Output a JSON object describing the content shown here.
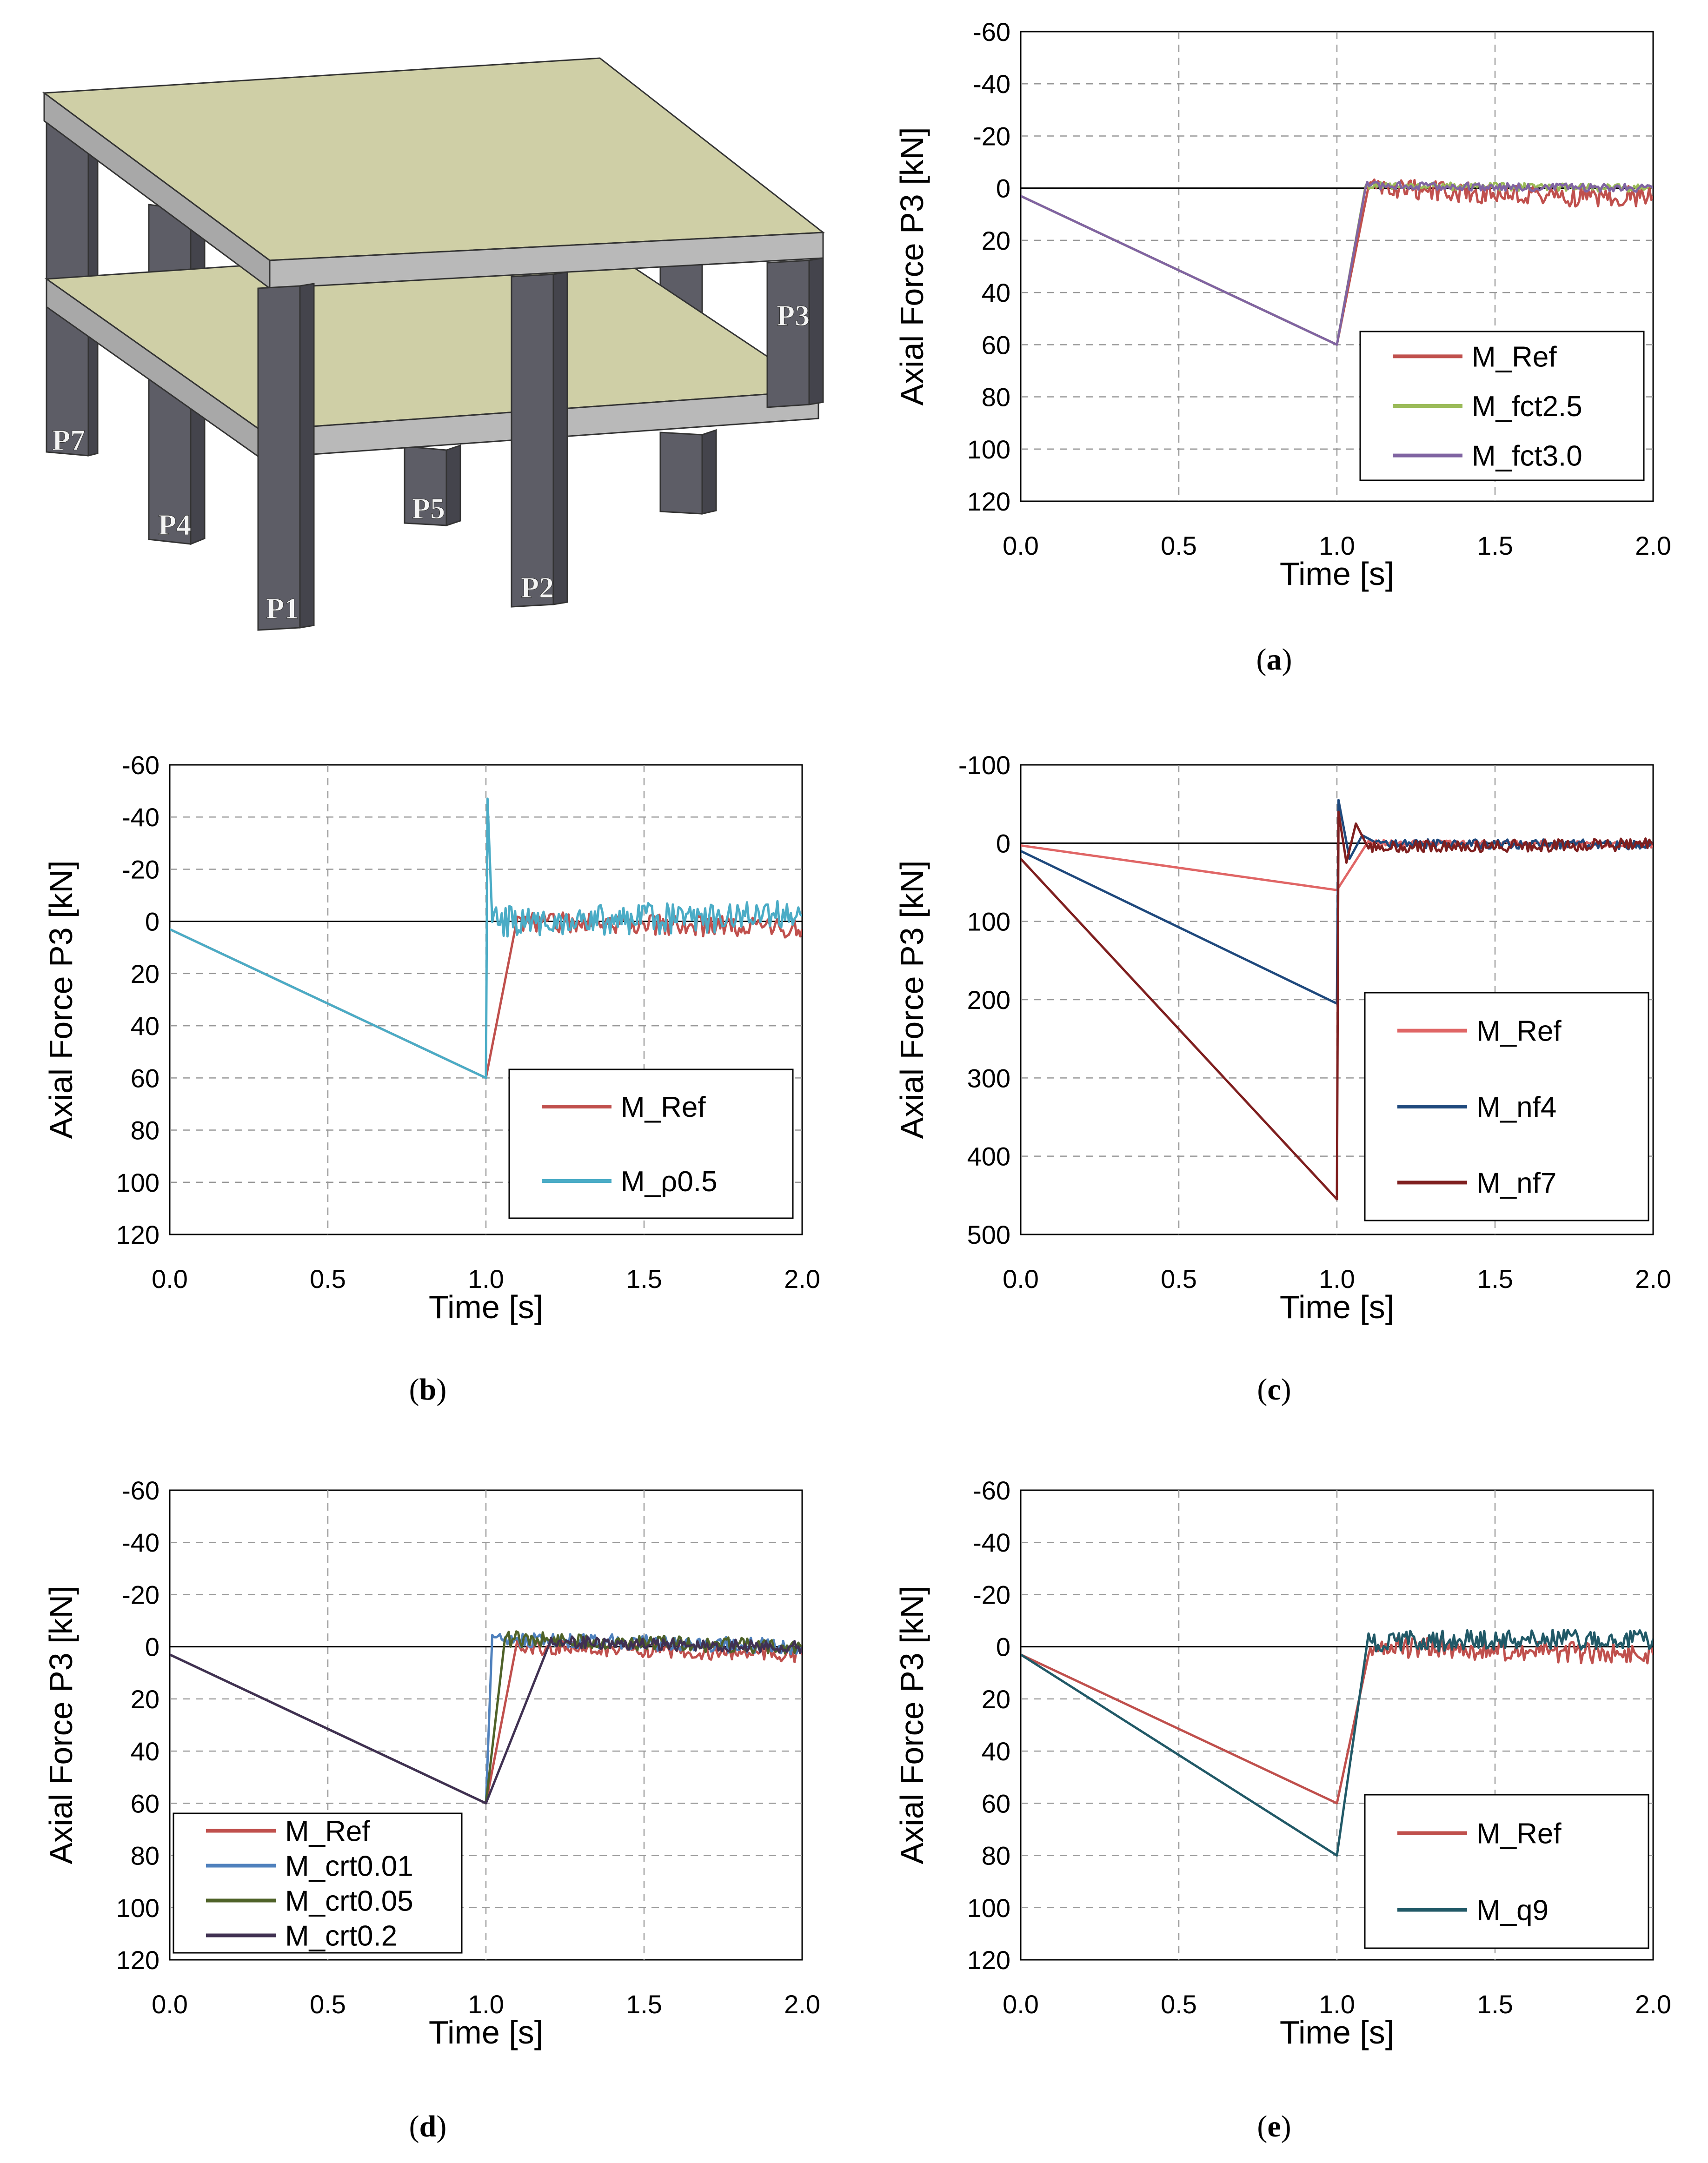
{
  "model": {
    "labels": [
      "P1",
      "P2",
      "P3",
      "P4",
      "P5",
      "P7"
    ],
    "colors": {
      "slab_top": "#cfcfa6",
      "slab_edge": "#b9b9b9",
      "column": "#5d5d66"
    }
  },
  "chart_data": [
    {
      "id": "a",
      "caption": "a",
      "type": "line",
      "xlabel": "Time [s]",
      "ylabel": "Axial Force P3 [kN]",
      "xlim": [
        0,
        2
      ],
      "ylim": [
        -60,
        120
      ],
      "y_inverted": true,
      "xticks": [
        "0.0",
        "0.5",
        "1.0",
        "1.5",
        "2.0"
      ],
      "yticks": [
        "-60",
        "-40",
        "-20",
        "0",
        "20",
        "40",
        "60",
        "80",
        "100",
        "120"
      ],
      "grid": true,
      "legend_position": "bottom-right",
      "series": [
        {
          "name": "M_Ref",
          "color": "#c0504d",
          "points": [
            [
              0,
              3
            ],
            [
              1.0,
              60
            ],
            [
              1.1,
              0
            ],
            [
              1.3,
              1
            ],
            [
              1.5,
              2
            ],
            [
              1.7,
              3
            ],
            [
              2.0,
              3
            ]
          ],
          "noise_after": 1.1,
          "noise_amp": 4
        },
        {
          "name": "M_fct2.5",
          "color": "#9bbb59",
          "points": [
            [
              0,
              3
            ],
            [
              1.0,
              60
            ],
            [
              1.09,
              -1
            ],
            [
              2.0,
              0
            ]
          ],
          "noise_after": 1.09,
          "noise_amp": 1.5
        },
        {
          "name": "M_fct3.0",
          "color": "#8064a2",
          "points": [
            [
              0,
              3
            ],
            [
              1.0,
              60
            ],
            [
              1.09,
              -1
            ],
            [
              2.0,
              0
            ]
          ],
          "noise_after": 1.09,
          "noise_amp": 1.5
        }
      ]
    },
    {
      "id": "b",
      "caption": "b",
      "type": "line",
      "xlabel": "Time [s]",
      "ylabel": "Axial Force P3 [kN]",
      "xlim": [
        0,
        2
      ],
      "ylim": [
        -60,
        120
      ],
      "y_inverted": true,
      "xticks": [
        "0.0",
        "0.5",
        "1.0",
        "1.5",
        "2.0"
      ],
      "yticks": [
        "-60",
        "-40",
        "-20",
        "0",
        "20",
        "40",
        "60",
        "80",
        "100",
        "120"
      ],
      "grid": true,
      "legend_position": "bottom-right",
      "series": [
        {
          "name": "M_Ref",
          "color": "#c0504d",
          "points": [
            [
              0,
              3
            ],
            [
              1.0,
              60
            ],
            [
              1.1,
              0
            ],
            [
              1.5,
              1
            ],
            [
              2.0,
              3
            ]
          ],
          "noise_after": 1.1,
          "noise_amp": 4
        },
        {
          "name": "M_ρ0.5",
          "color": "#4bacc6",
          "points": [
            [
              0,
              3
            ],
            [
              1.0,
              60
            ],
            [
              1.005,
              -47
            ],
            [
              1.02,
              0
            ],
            [
              2.0,
              -2
            ]
          ],
          "noise_after": 1.02,
          "noise_amp": 6
        }
      ]
    },
    {
      "id": "c",
      "caption": "c",
      "type": "line",
      "xlabel": "Time [s]",
      "ylabel": "Axial Force P3 [kN]",
      "xlim": [
        0,
        2
      ],
      "ylim": [
        -100,
        500
      ],
      "y_inverted": true,
      "xticks": [
        "0.0",
        "0.5",
        "1.0",
        "1.5",
        "2.0"
      ],
      "yticks": [
        "-100",
        "0",
        "100",
        "200",
        "300",
        "400",
        "500"
      ],
      "grid": true,
      "legend_position": "bottom-right",
      "series": [
        {
          "name": "M_Ref",
          "color": "#e06666",
          "points": [
            [
              0,
              3
            ],
            [
              1.0,
              60
            ],
            [
              1.1,
              0
            ],
            [
              2.0,
              2
            ]
          ],
          "noise_after": 1.1,
          "noise_amp": 4
        },
        {
          "name": "M_nf4",
          "color": "#1f497d",
          "points": [
            [
              0,
              10
            ],
            [
              1.0,
              205
            ],
            [
              1.005,
              -55
            ],
            [
              1.04,
              20
            ],
            [
              1.08,
              -10
            ],
            [
              1.12,
              0
            ],
            [
              2.0,
              2
            ]
          ],
          "noise_after": 1.12,
          "noise_amp": 6
        },
        {
          "name": "M_nf7",
          "color": "#7f1f1f",
          "points": [
            [
              0,
              20
            ],
            [
              1.0,
              455
            ],
            [
              1.005,
              -40
            ],
            [
              1.03,
              25
            ],
            [
              1.06,
              -25
            ],
            [
              1.1,
              5
            ],
            [
              2.0,
              2
            ]
          ],
          "noise_after": 1.1,
          "noise_amp": 8
        }
      ]
    },
    {
      "id": "d",
      "caption": "d",
      "type": "line",
      "xlabel": "Time [s]",
      "ylabel": "Axial Force P3 [kN]",
      "xlim": [
        0,
        2
      ],
      "ylim": [
        -60,
        120
      ],
      "y_inverted": true,
      "xticks": [
        "0.0",
        "0.5",
        "1.0",
        "1.5",
        "2.0"
      ],
      "yticks": [
        "-60",
        "-40",
        "-20",
        "0",
        "20",
        "40",
        "60",
        "80",
        "100",
        "120"
      ],
      "grid": true,
      "legend_position": "bottom-left",
      "series": [
        {
          "name": "M_Ref",
          "color": "#c0504d",
          "points": [
            [
              0,
              3
            ],
            [
              1.0,
              60
            ],
            [
              1.1,
              0
            ],
            [
              2.0,
              3
            ]
          ],
          "noise_after": 1.1,
          "noise_amp": 3
        },
        {
          "name": "M_crt0.01",
          "color": "#4f81bd",
          "points": [
            [
              0,
              3
            ],
            [
              1.0,
              60
            ],
            [
              1.02,
              -3
            ],
            [
              2.0,
              0
            ]
          ],
          "noise_after": 1.02,
          "noise_amp": 3
        },
        {
          "name": "M_crt0.05",
          "color": "#4f6228",
          "points": [
            [
              0,
              3
            ],
            [
              1.0,
              60
            ],
            [
              1.06,
              -3
            ],
            [
              2.0,
              0
            ]
          ],
          "noise_after": 1.06,
          "noise_amp": 3
        },
        {
          "name": "M_crt0.2",
          "color": "#403152",
          "points": [
            [
              0,
              3
            ],
            [
              1.0,
              60
            ],
            [
              1.2,
              -2
            ],
            [
              2.0,
              0
            ]
          ],
          "noise_after": 1.2,
          "noise_amp": 2.5
        }
      ]
    },
    {
      "id": "e",
      "caption": "e",
      "type": "line",
      "xlabel": "Time [s]",
      "ylabel": "Axial Force P3 [kN]",
      "xlim": [
        0,
        2
      ],
      "ylim": [
        -60,
        120
      ],
      "y_inverted": true,
      "xticks": [
        "0.0",
        "0.5",
        "1.0",
        "1.5",
        "2.0"
      ],
      "yticks": [
        "-60",
        "-40",
        "-20",
        "0",
        "20",
        "40",
        "60",
        "80",
        "100",
        "120"
      ],
      "grid": true,
      "legend_position": "bottom-right",
      "series": [
        {
          "name": "M_Ref",
          "color": "#c0504d",
          "points": [
            [
              0,
              3
            ],
            [
              1.0,
              60
            ],
            [
              1.1,
              0
            ],
            [
              2.0,
              3
            ]
          ],
          "noise_after": 1.1,
          "noise_amp": 4
        },
        {
          "name": "M_q9",
          "color": "#215967",
          "points": [
            [
              0,
              3
            ],
            [
              1.0,
              80
            ],
            [
              1.1,
              -2
            ],
            [
              2.0,
              -3
            ]
          ],
          "noise_after": 1.1,
          "noise_amp": 4
        }
      ]
    }
  ]
}
